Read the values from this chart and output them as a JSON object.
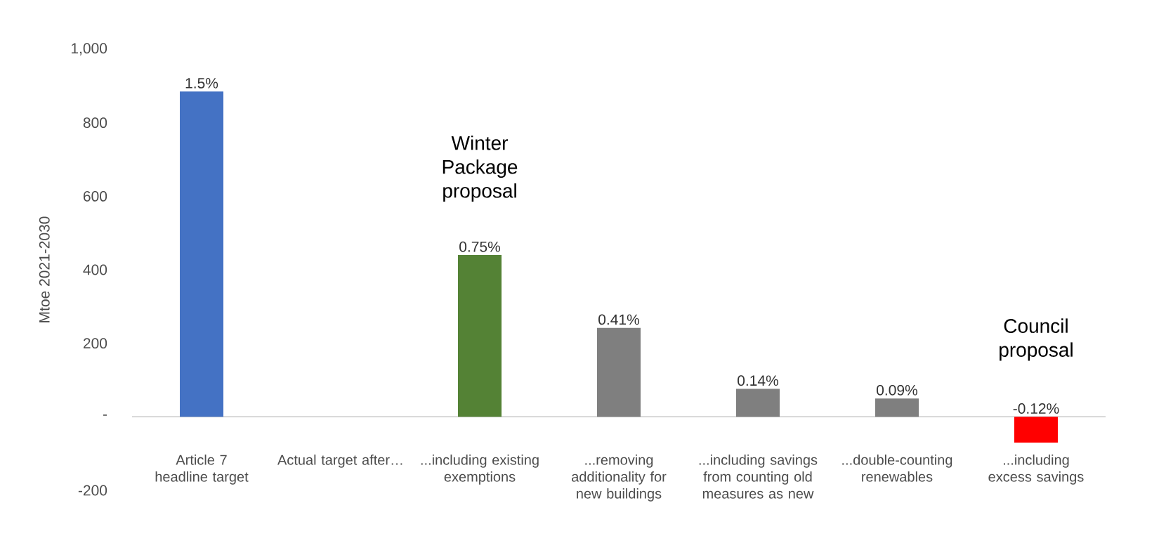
{
  "chart_data": {
    "type": "bar",
    "ylabel": "Mtoe 2021-2030",
    "categories": [
      "Article 7 headline target",
      "Actual target after…",
      "...including existing exemptions",
      "...removing additionality for new buildings",
      "...including savings from counting old measures as new",
      "...double-counting renewables",
      "...including excess savings"
    ],
    "values": [
      885,
      null,
      440,
      242,
      76,
      50,
      -70
    ],
    "colors": [
      "#4472c4",
      "#ffffff",
      "#548235",
      "#7f7f7f",
      "#7f7f7f",
      "#7f7f7f",
      "#ff0000"
    ],
    "ylim": [
      -200,
      1000
    ],
    "yticks": [
      -200,
      {
        "value": 0,
        "label": "-"
      },
      200,
      400,
      600,
      800,
      {
        "value": 1000,
        "label": "1,000"
      }
    ],
    "annotations": [
      "Winter Package proposal",
      "Council proposal",
      {
        "text": "1.5%",
        "x": "Article 7 headline target",
        "y": 885
      },
      {
        "text": "0.75%",
        "x": "...including existing exemptions",
        "y": 440
      },
      {
        "text": "0.41%",
        "x": "...removing additionality for new buildings",
        "y": 242
      },
      {
        "text": "0.14%",
        "x": "...including savings from counting old measures as new",
        "y": 76
      },
      {
        "text": "0.09%",
        "x": "...double-counting renewables",
        "y": 50
      },
      {
        "text": "-0.12%",
        "x": "...including excess savings",
        "y": -70
      }
    ]
  }
}
